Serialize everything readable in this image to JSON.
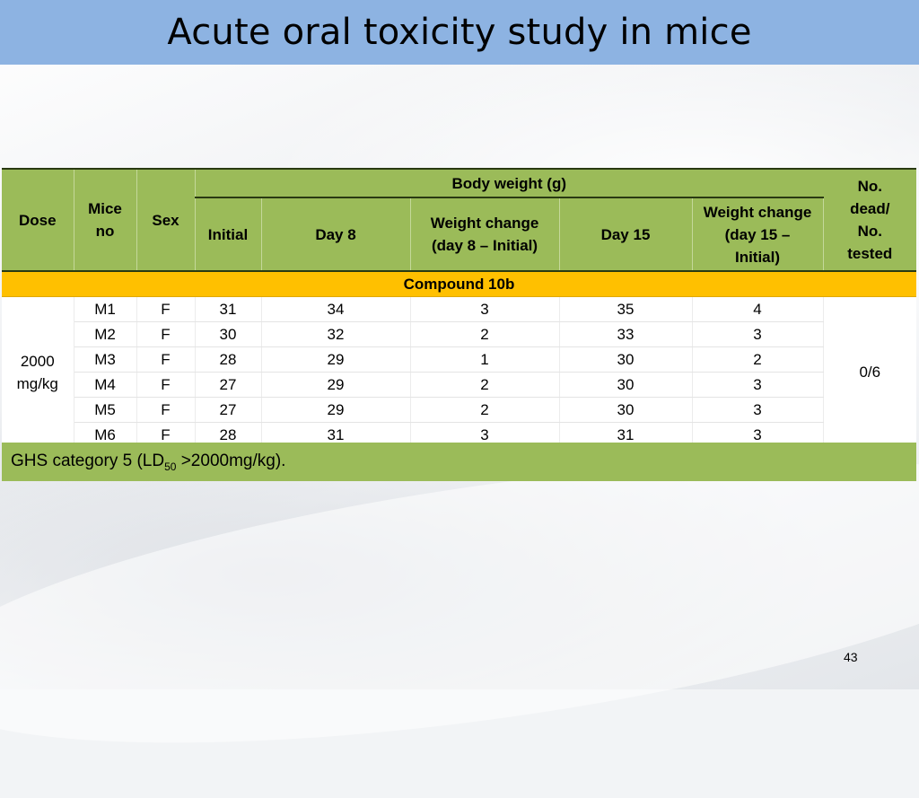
{
  "title": "Acute oral toxicity study in mice",
  "table": {
    "headers": {
      "dose": "Dose",
      "mice_no": "Mice no",
      "sex": "Sex",
      "body_weight": "Body weight (g)",
      "initial": "Initial",
      "day8": "Day 8",
      "weight_change_8": "Weight change (day 8 – Initial)",
      "day15": "Day 15",
      "weight_change_15": "Weight change (day 15 – Initial)",
      "dead": "No. dead/ No. tested"
    },
    "compound": "Compound 10b",
    "dose_value": "2000 mg/kg",
    "dead_value": "0/6",
    "rows": [
      {
        "mouse": "M1",
        "sex": "F",
        "initial": "31",
        "day8": "34",
        "change8": "3",
        "day15": "35",
        "change15": "4"
      },
      {
        "mouse": "M2",
        "sex": "F",
        "initial": "30",
        "day8": "32",
        "change8": "2",
        "day15": "33",
        "change15": "3"
      },
      {
        "mouse": "M3",
        "sex": "F",
        "initial": "28",
        "day8": "29",
        "change8": "1",
        "day15": "30",
        "change15": "2"
      },
      {
        "mouse": "M4",
        "sex": "F",
        "initial": "27",
        "day8": "29",
        "change8": "2",
        "day15": "30",
        "change15": "3"
      },
      {
        "mouse": "M5",
        "sex": "F",
        "initial": "27",
        "day8": "29",
        "change8": "2",
        "day15": "30",
        "change15": "3"
      },
      {
        "mouse": "M6",
        "sex": "F",
        "initial": "28",
        "day8": "31",
        "change8": "3",
        "day15": "31",
        "change15": "3"
      }
    ]
  },
  "footer": {
    "ghs_prefix": "GHS category 5 (LD",
    "ghs_sub": "50",
    "ghs_suffix": " >2000mg/kg)."
  },
  "page_number": "43",
  "colors": {
    "title_bar": "#8db3e2",
    "header_green": "#9bbb59",
    "compound_band": "#ffc000"
  }
}
